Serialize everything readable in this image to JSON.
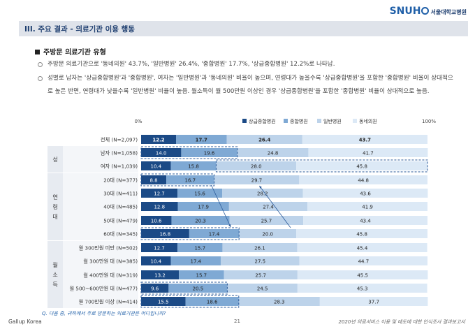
{
  "header": {
    "section_title": "III. 주요 결과 - 의료기관 이용 행동",
    "logo_main": "SNUH",
    "logo_sub": "서울대학교병원"
  },
  "subtitle": "주방문 의료기관 유형",
  "bullets": [
    "주방문 의료기관으로 '동네의원' 43.7%, '일반병원' 26.4%, '종합병원' 17.7%, '상급종합병원' 12.2%로 나타남.",
    "성별로 남자는 '상급종합병원'과 '종합병원', 여자는 '일반병원'과 '동네의원' 비율이 높으며, 연령대가 높을수록 '상급종합병원'을 포함한 '종합병원' 비율이 상대적으로 높은 반면, 연령대가 낮을수록 '일반병원' 비율이 높음. 월소득이 월 500만원 이상인 경우 '상급종합병원'을 포함한 '종합병원' 비율이 상대적으로 높음."
  ],
  "colors": {
    "tertiary": "#1b4a86",
    "general_hospital": "#7fa9d4",
    "hospital": "#bdd3ea",
    "clinic": "#dce9f6",
    "group_fill": "#e7ebf1",
    "highlight": "#2a5a9a"
  },
  "chart_data": {
    "type": "bar",
    "orientation": "horizontal",
    "stacked": true,
    "axis_start_label": "0%",
    "axis_end_label": "100%",
    "legend": [
      "상급종합병원",
      "종합병원",
      "일반병원",
      "동네의원"
    ],
    "groups": [
      {
        "name": "",
        "rows": [
          0
        ]
      },
      {
        "name": "성",
        "rows": [
          1,
          2
        ]
      },
      {
        "name": "연령대",
        "rows": [
          3,
          4,
          5,
          6,
          7
        ]
      },
      {
        "name": "월소득",
        "rows": [
          8,
          9,
          10,
          11,
          12
        ]
      }
    ],
    "categories": [
      "전체 (N=2,097)",
      "남자 (N=1,058)",
      "여자 (N=1,039)",
      "20대 (N=377)",
      "30대 (N=411)",
      "40대 (N=485)",
      "50대 (N=479)",
      "60대 (N=345)",
      "월 300만원 미만 (N=502)",
      "월 300만원 대 (N=385)",
      "월 400만원 대 (N=319)",
      "월 500~600만원 대 (N=477)",
      "월 700만원 이상 (N=414)"
    ],
    "series": [
      {
        "name": "상급종합병원",
        "values": [
          12.2,
          14.0,
          10.4,
          8.8,
          12.7,
          12.8,
          10.6,
          16.8,
          12.7,
          10.4,
          13.2,
          9.6,
          15.5
        ]
      },
      {
        "name": "종합병원",
        "values": [
          17.7,
          19.6,
          15.8,
          16.7,
          15.6,
          17.9,
          20.3,
          17.4,
          15.7,
          17.4,
          15.7,
          20.5,
          18.6
        ]
      },
      {
        "name": "일반병원",
        "values": [
          26.4,
          24.8,
          28.0,
          29.7,
          28.2,
          27.4,
          25.7,
          20.0,
          26.1,
          27.5,
          25.7,
          24.5,
          28.3
        ]
      },
      {
        "name": "동네의원",
        "values": [
          43.7,
          41.7,
          45.8,
          44.8,
          43.6,
          41.9,
          43.4,
          45.8,
          45.4,
          44.7,
          45.5,
          45.3,
          37.7
        ]
      }
    ]
  },
  "footer": {
    "question": "Q. 다음 중, 귀하께서 주로 방문하는 의료기관은 어디입니까?",
    "left": "Gallup  Korea",
    "page": "21",
    "right": "2020년 의료서비스 이용 및 태도에 대한 인식조사 결과보고서"
  }
}
